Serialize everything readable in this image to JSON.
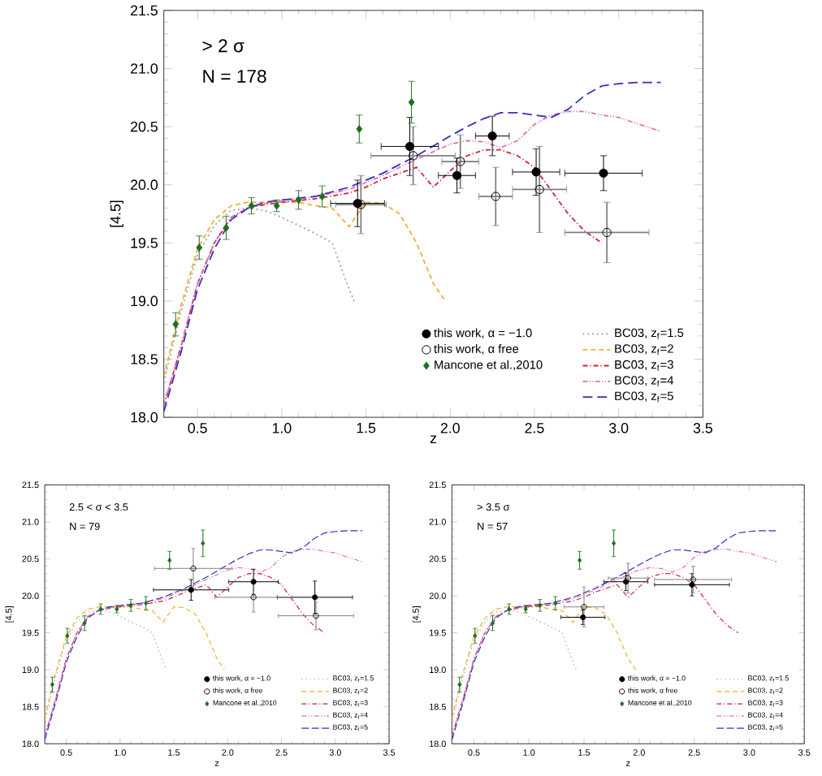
{
  "chart_data": [
    {
      "type": "scatter",
      "annotations": [
        "> 2 σ",
        "N = 178"
      ],
      "xlabel": "z",
      "ylabel": "[4.5]",
      "xlim": [
        0.3,
        3.5
      ],
      "ylim": [
        18.0,
        21.5
      ],
      "xticks": [
        0.5,
        {
          "value": 1,
          "label": "1.0"
        },
        1.5,
        {
          "value": 2,
          "label": "2.0"
        },
        2.5,
        {
          "value": 3,
          "label": "3.0"
        },
        3.5
      ],
      "yticks": [
        {
          "value": 18,
          "label": "18.0"
        },
        18.5,
        {
          "value": 19,
          "label": "19.0"
        },
        19.5,
        {
          "value": 20,
          "label": "20.0"
        },
        20.5,
        {
          "value": 21,
          "label": "21.0"
        },
        21.5
      ],
      "legend": "bottom right",
      "series": [
        {
          "name": "this work, α = −1.0",
          "marker": "circle",
          "color": "#000000",
          "x": [
            1.45,
            1.76,
            2.04,
            2.25,
            2.51,
            2.91
          ],
          "values": [
            19.84,
            20.33,
            20.08,
            20.42,
            20.11,
            20.1
          ],
          "errors": [
            0.2,
            0.25,
            0.15,
            0.17,
            0.2,
            0.15
          ],
          "xerrors": [
            0.16,
            0.17,
            0.11,
            0.1,
            0.14,
            0.23
          ]
        },
        {
          "name": "this work, α free",
          "marker": "circle-open",
          "color": "#000000",
          "x": [
            1.47,
            1.78,
            2.06,
            2.27,
            2.53,
            2.93
          ],
          "values": [
            19.83,
            20.25,
            20.2,
            19.9,
            19.96,
            19.59
          ],
          "errors": [
            0.25,
            0.25,
            0.23,
            0.25,
            0.37,
            0.26
          ],
          "xerrors": [
            0.15,
            0.25,
            0.11,
            0.1,
            0.16,
            0.25
          ]
        },
        {
          "name": "Mancone et al.,2010",
          "marker": "diamond",
          "color": "#1e6e1e",
          "x": [
            0.37,
            0.51,
            0.67,
            0.82,
            0.97,
            1.1,
            1.24,
            1.46,
            1.77
          ],
          "values": [
            18.8,
            19.46,
            19.63,
            19.82,
            19.82,
            19.87,
            19.9,
            20.48,
            20.71
          ],
          "errors": [
            0.1,
            0.1,
            0.1,
            0.07,
            0.05,
            0.08,
            0.09,
            0.12,
            0.18
          ]
        },
        {
          "name": "BC03, z$_{f}$=1.5",
          "type": "line",
          "line_style": "dotted",
          "color": "#999999",
          "x": [
            0.3,
            0.4,
            0.5,
            0.6,
            0.7,
            0.8,
            0.9,
            1.0,
            1.1,
            1.2,
            1.3,
            1.35,
            1.4,
            1.43
          ],
          "values": [
            18.3,
            18.9,
            19.4,
            19.65,
            19.78,
            19.8,
            19.78,
            19.72,
            19.65,
            19.58,
            19.5,
            19.3,
            19.1,
            19.0
          ]
        },
        {
          "name": "BC03, z$_{f}$=2",
          "type": "line",
          "line_style": "dashed",
          "color": "#f0b030",
          "x": [
            0.3,
            0.4,
            0.5,
            0.6,
            0.7,
            0.8,
            0.9,
            1.0,
            1.1,
            1.2,
            1.3,
            1.35,
            1.4,
            1.45,
            1.5,
            1.6,
            1.7,
            1.8,
            1.9,
            1.97
          ],
          "values": [
            18.35,
            18.95,
            19.45,
            19.7,
            19.82,
            19.85,
            19.85,
            19.85,
            19.85,
            19.82,
            19.8,
            19.72,
            19.64,
            19.75,
            19.85,
            19.84,
            19.75,
            19.5,
            19.15,
            19.0
          ]
        },
        {
          "name": "BC03, z$_{f}$=3",
          "type": "line",
          "line_style": "dashdot",
          "color": "#d02030",
          "x": [
            0.3,
            0.4,
            0.5,
            0.6,
            0.7,
            0.8,
            0.9,
            1.0,
            1.2,
            1.4,
            1.5,
            1.6,
            1.7,
            1.8,
            1.9,
            2.0,
            2.1,
            2.2,
            2.3,
            2.4,
            2.5,
            2.6,
            2.7,
            2.8,
            2.9
          ],
          "values": [
            18.1,
            18.6,
            19.15,
            19.5,
            19.72,
            19.8,
            19.83,
            19.85,
            19.88,
            19.93,
            19.98,
            20.05,
            20.1,
            20.15,
            19.98,
            20.12,
            20.25,
            20.3,
            20.3,
            20.25,
            20.15,
            19.95,
            19.75,
            19.6,
            19.5
          ]
        },
        {
          "name": "BC03, z$_{f}$=4",
          "type": "line",
          "line_style": "dashdotdot",
          "color": "#e070b0",
          "x": [
            0.3,
            0.4,
            0.5,
            0.6,
            0.7,
            0.8,
            0.9,
            1.0,
            1.2,
            1.4,
            1.6,
            1.8,
            2.0,
            2.1,
            2.2,
            2.3,
            2.4,
            2.5,
            2.6,
            2.7,
            2.8,
            2.9,
            3.0,
            3.1,
            3.25
          ],
          "values": [
            18.1,
            18.6,
            19.15,
            19.5,
            19.72,
            19.8,
            19.84,
            19.86,
            19.9,
            19.96,
            20.08,
            20.22,
            20.35,
            20.38,
            20.37,
            20.32,
            20.38,
            20.52,
            20.6,
            20.63,
            20.63,
            20.6,
            20.58,
            20.53,
            20.46
          ]
        },
        {
          "name": "BC03, z$_{f}$=5",
          "type": "line",
          "line_style": "longdash",
          "color": "#3030c0",
          "x": [
            0.3,
            0.4,
            0.5,
            0.6,
            0.7,
            0.8,
            0.9,
            1.0,
            1.2,
            1.4,
            1.6,
            1.8,
            2.0,
            2.1,
            2.2,
            2.3,
            2.4,
            2.5,
            2.6,
            2.7,
            2.8,
            2.9,
            3.0,
            3.1,
            3.25
          ],
          "values": [
            18.05,
            18.55,
            19.1,
            19.45,
            19.7,
            19.8,
            19.85,
            19.87,
            19.9,
            19.98,
            20.1,
            20.25,
            20.42,
            20.5,
            20.57,
            20.62,
            20.62,
            20.6,
            20.58,
            20.65,
            20.77,
            20.85,
            20.87,
            20.88,
            20.88
          ]
        }
      ]
    },
    {
      "type": "scatter",
      "annotations": [
        "2.5 < σ < 3.5",
        "N = 79"
      ],
      "xlabel": "z",
      "ylabel": "[4.5]",
      "xlim": [
        0.3,
        3.5
      ],
      "ylim": [
        18.0,
        21.5
      ],
      "xticks": [
        0.5,
        {
          "value": 1,
          "label": "1.0"
        },
        1.5,
        {
          "value": 2,
          "label": "2.0"
        },
        2.5,
        {
          "value": 3,
          "label": "3.0"
        },
        3.5
      ],
      "yticks": [
        {
          "value": 18,
          "label": "18.0"
        },
        18.5,
        {
          "value": 19,
          "label": "19.0"
        },
        19.5,
        {
          "value": 20,
          "label": "20.0"
        },
        20.5,
        {
          "value": 21,
          "label": "21.0"
        },
        21.5
      ],
      "legend": "bottom right",
      "series": [
        {
          "name": "this work, α = −1.0",
          "marker": "circle",
          "color": "#000000",
          "x": [
            1.66,
            2.24,
            2.81
          ],
          "values": [
            20.08,
            20.19,
            19.98
          ],
          "errors": [
            0.14,
            0.17,
            0.22
          ],
          "xerrors": [
            0.35,
            0.23,
            0.35
          ]
        },
        {
          "name": "this work, α free",
          "marker": "circle-open",
          "color": "#000000",
          "x": [
            1.68,
            2.24,
            2.82
          ],
          "values": [
            20.37,
            19.98,
            19.73
          ],
          "errors": [
            0.27,
            0.2,
            0.19
          ],
          "xerrors": [
            0.36,
            0.36,
            0.35
          ]
        },
        {
          "name": "Mancone et al.,2010",
          "marker": "diamond",
          "color": "#1e6e1e",
          "x": [
            0.37,
            0.51,
            0.67,
            0.82,
            0.97,
            1.1,
            1.24,
            1.46,
            1.77
          ],
          "values": [
            18.8,
            19.46,
            19.63,
            19.82,
            19.82,
            19.87,
            19.9,
            20.48,
            20.71
          ],
          "errors": [
            0.1,
            0.1,
            0.1,
            0.07,
            0.05,
            0.08,
            0.09,
            0.12,
            0.18
          ]
        },
        {
          "name": "BC03, z$_{f}$=1.5",
          "type": "line",
          "line_style": "dotted",
          "color": "#999999",
          "x": [
            0.3,
            0.4,
            0.5,
            0.6,
            0.7,
            0.8,
            0.9,
            1.0,
            1.1,
            1.2,
            1.3,
            1.35,
            1.4,
            1.43
          ],
          "values": [
            18.3,
            18.9,
            19.4,
            19.65,
            19.78,
            19.8,
            19.78,
            19.72,
            19.65,
            19.58,
            19.5,
            19.3,
            19.1,
            19.0
          ]
        },
        {
          "name": "BC03, z$_{f}$=2",
          "type": "line",
          "line_style": "dashed",
          "color": "#f0b030",
          "x": [
            0.3,
            0.4,
            0.5,
            0.6,
            0.7,
            0.8,
            0.9,
            1.0,
            1.1,
            1.2,
            1.3,
            1.35,
            1.4,
            1.45,
            1.5,
            1.6,
            1.7,
            1.8,
            1.9,
            1.97
          ],
          "values": [
            18.35,
            18.95,
            19.45,
            19.7,
            19.82,
            19.85,
            19.85,
            19.85,
            19.85,
            19.82,
            19.8,
            19.72,
            19.64,
            19.75,
            19.85,
            19.84,
            19.75,
            19.5,
            19.15,
            19.0
          ]
        },
        {
          "name": "BC03, z$_{f}$=3",
          "type": "line",
          "line_style": "dashdot",
          "color": "#d02030",
          "x": [
            0.3,
            0.4,
            0.5,
            0.6,
            0.7,
            0.8,
            0.9,
            1.0,
            1.2,
            1.4,
            1.5,
            1.6,
            1.7,
            1.8,
            1.9,
            2.0,
            2.1,
            2.2,
            2.3,
            2.4,
            2.5,
            2.6,
            2.7,
            2.8,
            2.9
          ],
          "values": [
            18.1,
            18.6,
            19.15,
            19.5,
            19.72,
            19.8,
            19.83,
            19.85,
            19.88,
            19.93,
            19.98,
            20.05,
            20.1,
            20.15,
            19.98,
            20.12,
            20.25,
            20.3,
            20.3,
            20.25,
            20.15,
            19.95,
            19.75,
            19.6,
            19.5
          ]
        },
        {
          "name": "BC03, z$_{f}$=4",
          "type": "line",
          "line_style": "dashdotdot",
          "color": "#e070b0",
          "x": [
            0.3,
            0.4,
            0.5,
            0.6,
            0.7,
            0.8,
            0.9,
            1.0,
            1.2,
            1.4,
            1.6,
            1.8,
            2.0,
            2.1,
            2.2,
            2.3,
            2.4,
            2.5,
            2.6,
            2.7,
            2.8,
            2.9,
            3.0,
            3.1,
            3.25
          ],
          "values": [
            18.1,
            18.6,
            19.15,
            19.5,
            19.72,
            19.8,
            19.84,
            19.86,
            19.9,
            19.96,
            20.08,
            20.22,
            20.35,
            20.38,
            20.37,
            20.32,
            20.38,
            20.52,
            20.6,
            20.63,
            20.63,
            20.6,
            20.58,
            20.53,
            20.46
          ]
        },
        {
          "name": "BC03, z$_{f}$=5",
          "type": "line",
          "line_style": "longdash",
          "color": "#3030c0",
          "x": [
            0.3,
            0.4,
            0.5,
            0.6,
            0.7,
            0.8,
            0.9,
            1.0,
            1.2,
            1.4,
            1.6,
            1.8,
            2.0,
            2.1,
            2.2,
            2.3,
            2.4,
            2.5,
            2.6,
            2.7,
            2.8,
            2.9,
            3.0,
            3.1,
            3.25
          ],
          "values": [
            18.05,
            18.55,
            19.1,
            19.45,
            19.7,
            19.8,
            19.85,
            19.87,
            19.9,
            19.98,
            20.1,
            20.25,
            20.42,
            20.5,
            20.57,
            20.62,
            20.62,
            20.6,
            20.58,
            20.65,
            20.77,
            20.85,
            20.87,
            20.88,
            20.88
          ]
        }
      ]
    },
    {
      "type": "scatter",
      "annotations": [
        "> 3.5 σ",
        "N = 57"
      ],
      "xlabel": "z",
      "ylabel": "[4.5]",
      "xlim": [
        0.3,
        3.5
      ],
      "ylim": [
        18.0,
        21.5
      ],
      "xticks": [
        0.5,
        {
          "value": 1,
          "label": "1.0"
        },
        1.5,
        {
          "value": 2,
          "label": "2.0"
        },
        2.5,
        {
          "value": 3,
          "label": "3.0"
        },
        3.5
      ],
      "yticks": [
        {
          "value": 18,
          "label": "18.0"
        },
        18.5,
        {
          "value": 19,
          "label": "19.0"
        },
        19.5,
        {
          "value": 20,
          "label": "20.0"
        },
        20.5,
        {
          "value": 21,
          "label": "21.0"
        },
        21.5
      ],
      "legend": "bottom right",
      "series": [
        {
          "name": "this work, α = −1.0",
          "marker": "circle",
          "color": "#000000",
          "x": [
            1.49,
            1.88,
            2.48
          ],
          "values": [
            19.71,
            20.19,
            20.15
          ],
          "errors": [
            0.1,
            0.12,
            0.15
          ],
          "xerrors": [
            0.2,
            0.2,
            0.34
          ]
        },
        {
          "name": "this work, α free",
          "marker": "circle-open",
          "color": "#000000",
          "x": [
            1.5,
            1.9,
            2.49
          ],
          "values": [
            19.85,
            20.24,
            20.22
          ],
          "errors": [
            0.27,
            0.2,
            0.18
          ],
          "xerrors": [
            0.18,
            0.18,
            0.35
          ]
        },
        {
          "name": "Mancone et al.,2010",
          "marker": "diamond",
          "color": "#1e6e1e",
          "x": [
            0.37,
            0.51,
            0.67,
            0.82,
            0.97,
            1.1,
            1.24,
            1.46,
            1.77
          ],
          "values": [
            18.8,
            19.46,
            19.63,
            19.82,
            19.82,
            19.87,
            19.9,
            20.48,
            20.71
          ],
          "errors": [
            0.1,
            0.1,
            0.1,
            0.07,
            0.05,
            0.08,
            0.09,
            0.12,
            0.18
          ]
        },
        {
          "name": "BC03, z$_{f}$=1.5",
          "type": "line",
          "line_style": "dotted",
          "color": "#999999",
          "x": [
            0.3,
            0.4,
            0.5,
            0.6,
            0.7,
            0.8,
            0.9,
            1.0,
            1.1,
            1.2,
            1.3,
            1.35,
            1.4,
            1.43
          ],
          "values": [
            18.3,
            18.9,
            19.4,
            19.65,
            19.78,
            19.8,
            19.78,
            19.72,
            19.65,
            19.58,
            19.5,
            19.3,
            19.1,
            19.0
          ]
        },
        {
          "name": "BC03, z$_{f}$=2",
          "type": "line",
          "line_style": "dashed",
          "color": "#f0b030",
          "x": [
            0.3,
            0.4,
            0.5,
            0.6,
            0.7,
            0.8,
            0.9,
            1.0,
            1.1,
            1.2,
            1.3,
            1.35,
            1.4,
            1.45,
            1.5,
            1.6,
            1.7,
            1.8,
            1.9,
            1.97
          ],
          "values": [
            18.35,
            18.95,
            19.45,
            19.7,
            19.82,
            19.85,
            19.85,
            19.85,
            19.85,
            19.82,
            19.8,
            19.72,
            19.64,
            19.75,
            19.85,
            19.84,
            19.75,
            19.5,
            19.15,
            19.0
          ]
        },
        {
          "name": "BC03, z$_{f}$=3",
          "type": "line",
          "line_style": "dashdot",
          "color": "#d02030",
          "x": [
            0.3,
            0.4,
            0.5,
            0.6,
            0.7,
            0.8,
            0.9,
            1.0,
            1.2,
            1.4,
            1.5,
            1.6,
            1.7,
            1.8,
            1.9,
            2.0,
            2.1,
            2.2,
            2.3,
            2.4,
            2.5,
            2.6,
            2.7,
            2.8,
            2.9
          ],
          "values": [
            18.1,
            18.6,
            19.15,
            19.5,
            19.72,
            19.8,
            19.83,
            19.85,
            19.88,
            19.93,
            19.98,
            20.05,
            20.1,
            20.15,
            19.98,
            20.12,
            20.25,
            20.3,
            20.3,
            20.25,
            20.15,
            19.95,
            19.75,
            19.6,
            19.5
          ]
        },
        {
          "name": "BC03, z$_{f}$=4",
          "type": "line",
          "line_style": "dashdotdot",
          "color": "#e070b0",
          "x": [
            0.3,
            0.4,
            0.5,
            0.6,
            0.7,
            0.8,
            0.9,
            1.0,
            1.2,
            1.4,
            1.6,
            1.8,
            2.0,
            2.1,
            2.2,
            2.3,
            2.4,
            2.5,
            2.6,
            2.7,
            2.8,
            2.9,
            3.0,
            3.1,
            3.25
          ],
          "values": [
            18.1,
            18.6,
            19.15,
            19.5,
            19.72,
            19.8,
            19.84,
            19.86,
            19.9,
            19.96,
            20.08,
            20.22,
            20.35,
            20.38,
            20.37,
            20.32,
            20.38,
            20.52,
            20.6,
            20.63,
            20.63,
            20.6,
            20.58,
            20.53,
            20.46
          ]
        },
        {
          "name": "BC03, z$_{f}$=5",
          "type": "line",
          "line_style": "longdash",
          "color": "#3030c0",
          "x": [
            0.3,
            0.4,
            0.5,
            0.6,
            0.7,
            0.8,
            0.9,
            1.0,
            1.2,
            1.4,
            1.6,
            1.8,
            2.0,
            2.1,
            2.2,
            2.3,
            2.4,
            2.5,
            2.6,
            2.7,
            2.8,
            2.9,
            3.0,
            3.1,
            3.25
          ],
          "values": [
            18.05,
            18.55,
            19.1,
            19.45,
            19.7,
            19.8,
            19.85,
            19.87,
            19.9,
            19.98,
            20.1,
            20.25,
            20.42,
            20.5,
            20.57,
            20.62,
            20.62,
            20.6,
            20.58,
            20.65,
            20.77,
            20.85,
            20.87,
            20.88,
            20.88
          ]
        }
      ]
    }
  ]
}
